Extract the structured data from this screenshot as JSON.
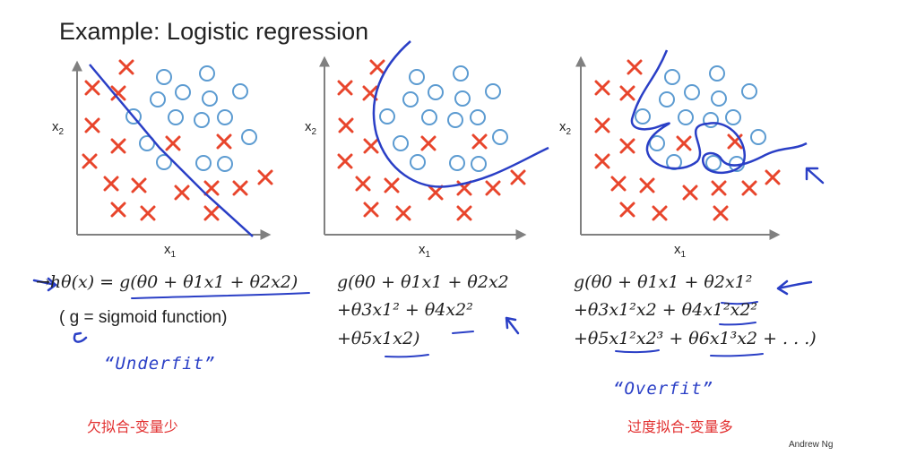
{
  "slide": {
    "title": "Example: Logistic regression",
    "credit": "Andrew Ng"
  },
  "colors": {
    "cross": "#e8452c",
    "circle": "#5c9bd1",
    "ink": "#2a3fc6",
    "axis": "#808080",
    "annotation_cn": "#e23030"
  },
  "panels": [
    {
      "id": "underfit",
      "axis_x_label": "x",
      "axis_x_sub": "1",
      "axis_y_label": "x",
      "axis_y_sub": "2",
      "hypothesis_line1": "→hθ(x) = g(θ0 + θ1x1 + θ2x2)",
      "note": "( g = sigmoid function)",
      "handwritten": "“Underfit”",
      "chinese_note": "欠拟合-变量少"
    },
    {
      "id": "just-right",
      "axis_x_label": "x",
      "axis_x_sub": "1",
      "axis_y_label": "x",
      "axis_y_sub": "2",
      "hypothesis_line1": "g(θ0 + θ1x1 + θ2x2",
      "hypothesis_line2": "+θ3x1² + θ4x2²",
      "hypothesis_line3": "+θ5x1x2)"
    },
    {
      "id": "overfit",
      "axis_x_label": "x",
      "axis_x_sub": "1",
      "axis_y_label": "x",
      "axis_y_sub": "2",
      "hypothesis_line1": "g(θ0 + θ1x1 + θ2x1²",
      "hypothesis_line2": "+θ3x1²x2 + θ4x1²x2²",
      "hypothesis_line3": "+θ5x1²x2³ + θ6x1³x2 + . . .)",
      "handwritten": "“Overfit”",
      "chinese_note": "过度拟合-变量多"
    }
  ]
}
